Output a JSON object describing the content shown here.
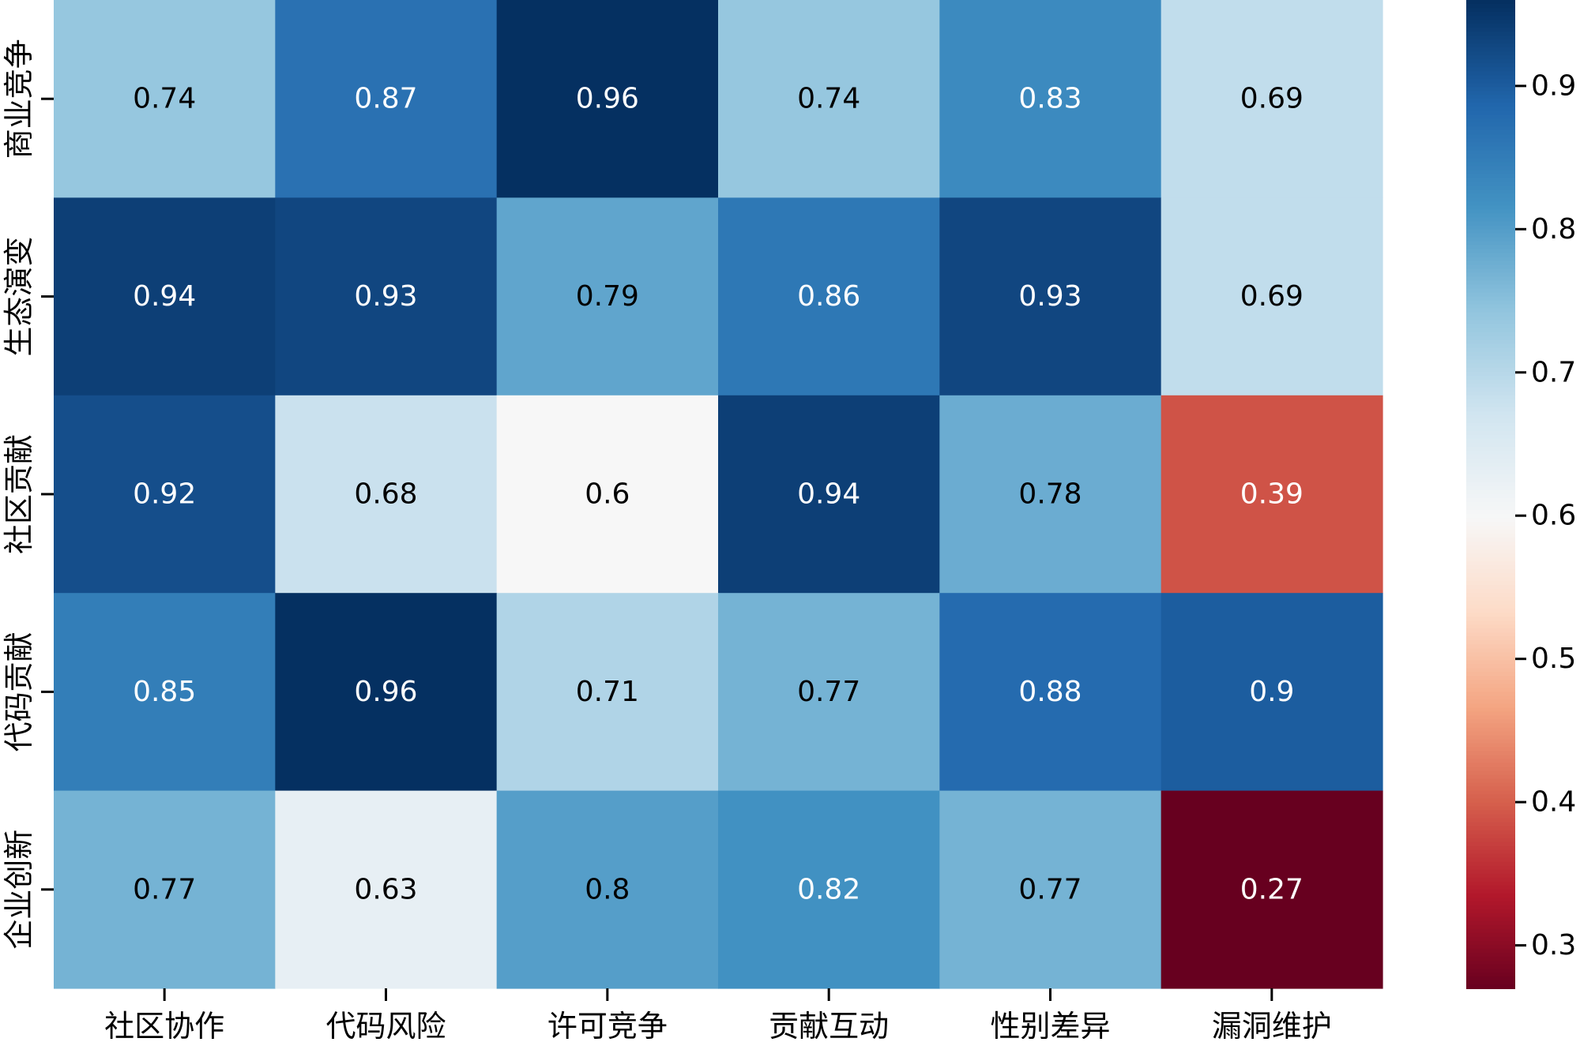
{
  "chart_data": {
    "type": "heatmap",
    "title": "",
    "xlabel": "",
    "ylabel": "",
    "x_categories": [
      "社区协作",
      "代码风险",
      "许可竞争",
      "贡献互动",
      "性别差异",
      "漏洞维护"
    ],
    "y_categories": [
      "商业竞争",
      "生态演变",
      "社区贡献",
      "代码贡献",
      "企业创新"
    ],
    "values": [
      [
        0.74,
        0.87,
        0.96,
        0.74,
        0.83,
        0.69
      ],
      [
        0.94,
        0.93,
        0.79,
        0.86,
        0.93,
        0.69
      ],
      [
        0.92,
        0.68,
        0.6,
        0.94,
        0.78,
        0.39
      ],
      [
        0.85,
        0.96,
        0.71,
        0.77,
        0.88,
        0.9
      ],
      [
        0.77,
        0.63,
        0.8,
        0.82,
        0.77,
        0.27
      ]
    ],
    "value_labels": [
      [
        "0.74",
        "0.87",
        "0.96",
        "0.74",
        "0.83",
        "0.69"
      ],
      [
        "0.94",
        "0.93",
        "0.79",
        "0.86",
        "0.93",
        "0.69"
      ],
      [
        "0.92",
        "0.68",
        "0.6",
        "0.94",
        "0.78",
        "0.39"
      ],
      [
        "0.85",
        "0.96",
        "0.71",
        "0.77",
        "0.88",
        "0.9"
      ],
      [
        "0.77",
        "0.63",
        "0.8",
        "0.82",
        "0.77",
        "0.27"
      ]
    ],
    "colorbar": {
      "colormap": "RdBu",
      "vmin": 0.27,
      "vmax": 0.96,
      "ticks": [
        0.3,
        0.4,
        0.5,
        0.6,
        0.7,
        0.8,
        0.9
      ],
      "tick_labels": [
        "0.3",
        "0.4",
        "0.5",
        "0.6",
        "0.7",
        "0.8",
        "0.9"
      ]
    },
    "colors": {
      "low": "#67001f",
      "mid": "#f7f7f7",
      "high": "#053061"
    },
    "grid": false,
    "legend": "colorbar-right"
  }
}
